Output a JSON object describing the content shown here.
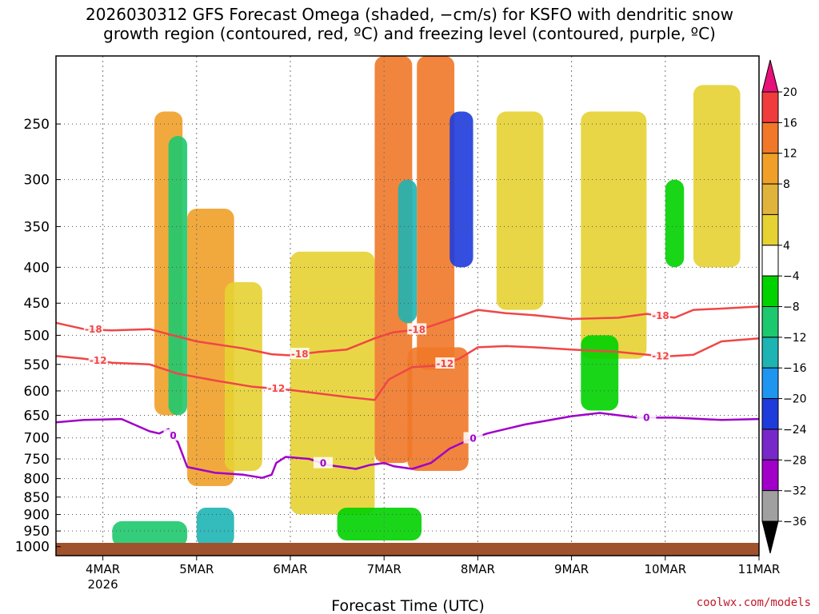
{
  "chart_data": {
    "type": "heatmap",
    "title": "2026030312 GFS Forecast Omega (shaded, −cm/s) for KSFO with dendritic snow\ngrowth region (contoured, red, ºC) and freezing level (contoured, purple, ºC)",
    "xlabel": "Forecast Time (UTC)",
    "ylabel": "",
    "x_ticks": [
      {
        "day": 4.0,
        "label": "4MAR",
        "sub": "2026"
      },
      {
        "day": 5.0,
        "label": "5MAR",
        "sub": ""
      },
      {
        "day": 6.0,
        "label": "6MAR",
        "sub": ""
      },
      {
        "day": 7.0,
        "label": "7MAR",
        "sub": ""
      },
      {
        "day": 8.0,
        "label": "8MAR",
        "sub": ""
      },
      {
        "day": 9.0,
        "label": "9MAR",
        "sub": ""
      },
      {
        "day": 10.0,
        "label": "10MAR",
        "sub": ""
      },
      {
        "day": 11.0,
        "label": "11MAR",
        "sub": ""
      }
    ],
    "xlim": [
      3.5,
      11.0
    ],
    "ylim": [
      1030,
      200
    ],
    "y_ticks": [
      250,
      300,
      350,
      400,
      450,
      500,
      550,
      600,
      650,
      700,
      750,
      800,
      850,
      900,
      950,
      1000
    ],
    "colorbar": {
      "labels": [
        "20",
        "16",
        "12",
        "8",
        "4",
        "−4",
        "−8",
        "−12",
        "−16",
        "−20",
        "−24",
        "−28",
        "−32",
        "−36"
      ],
      "colors": [
        "#e8107a",
        "#f03c3c",
        "#f07828",
        "#f0a028",
        "#e0b43c",
        "#e6d232",
        "#ffffff",
        "#00d200",
        "#1ec86e",
        "#1eb4b4",
        "#1e96f0",
        "#1e3cdc",
        "#7828c8",
        "#a000c8",
        "#a0a0a0",
        "#000000"
      ]
    },
    "series": [
      {
        "name": "-18C",
        "label": "-18",
        "color": "#f04646",
        "points": [
          [
            3.5,
            480
          ],
          [
            3.8,
            490
          ],
          [
            4.1,
            492
          ],
          [
            4.5,
            490
          ],
          [
            4.7,
            498
          ],
          [
            5.0,
            510
          ],
          [
            5.5,
            522
          ],
          [
            5.8,
            532
          ],
          [
            6.0,
            534
          ],
          [
            6.3,
            528
          ],
          [
            6.6,
            524
          ],
          [
            6.9,
            505
          ],
          [
            7.1,
            495
          ],
          [
            7.4,
            490
          ],
          [
            7.7,
            475
          ],
          [
            8.0,
            460
          ],
          [
            8.3,
            465
          ],
          [
            8.6,
            468
          ],
          [
            9.0,
            474
          ],
          [
            9.5,
            472
          ],
          [
            9.8,
            466
          ],
          [
            10.1,
            472
          ],
          [
            10.3,
            460
          ],
          [
            10.6,
            458
          ],
          [
            11.0,
            455
          ]
        ],
        "label_days": [
          3.9,
          6.1,
          7.35,
          9.95
        ]
      },
      {
        "name": "-12C",
        "label": "-12",
        "color": "#f04646",
        "points": [
          [
            3.5,
            535
          ],
          [
            3.8,
            540
          ],
          [
            4.1,
            547
          ],
          [
            4.5,
            550
          ],
          [
            4.8,
            567
          ],
          [
            5.2,
            580
          ],
          [
            5.6,
            592
          ],
          [
            6.0,
            598
          ],
          [
            6.3,
            605
          ],
          [
            6.6,
            612
          ],
          [
            6.9,
            618
          ],
          [
            7.05,
            578
          ],
          [
            7.3,
            555
          ],
          [
            7.6,
            552
          ],
          [
            7.8,
            540
          ],
          [
            8.0,
            520
          ],
          [
            8.3,
            518
          ],
          [
            8.6,
            520
          ],
          [
            9.0,
            524
          ],
          [
            9.5,
            528
          ],
          [
            10.0,
            536
          ],
          [
            10.3,
            533
          ],
          [
            10.6,
            510
          ],
          [
            11.0,
            505
          ]
        ],
        "label_days": [
          3.95,
          5.85,
          7.65,
          9.95
        ]
      },
      {
        "name": "0C",
        "label": "0",
        "color": "#a000c8",
        "points": [
          [
            3.5,
            665
          ],
          [
            3.8,
            660
          ],
          [
            4.2,
            658
          ],
          [
            4.5,
            685
          ],
          [
            4.6,
            690
          ],
          [
            4.7,
            680
          ],
          [
            4.8,
            710
          ],
          [
            4.9,
            770
          ],
          [
            5.2,
            785
          ],
          [
            5.5,
            790
          ],
          [
            5.7,
            798
          ],
          [
            5.8,
            790
          ],
          [
            5.85,
            760
          ],
          [
            5.95,
            745
          ],
          [
            6.2,
            750
          ],
          [
            6.4,
            765
          ],
          [
            6.7,
            775
          ],
          [
            6.85,
            765
          ],
          [
            7.0,
            760
          ],
          [
            7.1,
            768
          ],
          [
            7.3,
            775
          ],
          [
            7.5,
            760
          ],
          [
            7.7,
            725
          ],
          [
            7.9,
            705
          ],
          [
            8.1,
            690
          ],
          [
            8.5,
            670
          ],
          [
            9.0,
            652
          ],
          [
            9.3,
            645
          ],
          [
            9.7,
            655
          ],
          [
            10.1,
            655
          ],
          [
            10.6,
            660
          ],
          [
            11.0,
            658
          ]
        ],
        "label_days": [
          4.75,
          6.35,
          7.95,
          9.8
        ]
      }
    ],
    "shading_patches": [
      {
        "t0": 4.55,
        "t1": 4.85,
        "p0": 240,
        "p1": 650,
        "value": 8
      },
      {
        "t0": 4.9,
        "t1": 5.4,
        "p0": 330,
        "p1": 820,
        "value": 10
      },
      {
        "t0": 5.3,
        "t1": 5.7,
        "p0": 420,
        "p1": 780,
        "value": 7
      },
      {
        "t0": 6.0,
        "t1": 6.9,
        "p0": 380,
        "p1": 900,
        "value": 6
      },
      {
        "t0": 6.9,
        "t1": 7.3,
        "p0": 200,
        "p1": 760,
        "value": 12
      },
      {
        "t0": 7.35,
        "t1": 7.75,
        "p0": 200,
        "p1": 560,
        "value": 13
      },
      {
        "t0": 7.25,
        "t1": 7.9,
        "p0": 520,
        "p1": 780,
        "value": 12
      },
      {
        "t0": 8.2,
        "t1": 8.7,
        "p0": 240,
        "p1": 460,
        "value": 5
      },
      {
        "t0": 9.1,
        "t1": 9.8,
        "p0": 240,
        "p1": 540,
        "value": 6
      },
      {
        "t0": 10.3,
        "t1": 10.8,
        "p0": 220,
        "p1": 400,
        "value": 5
      },
      {
        "t0": 7.7,
        "t1": 7.95,
        "p0": 240,
        "p1": 400,
        "value": -22
      },
      {
        "t0": 7.15,
        "t1": 7.35,
        "p0": 300,
        "p1": 480,
        "value": -15
      },
      {
        "t0": 4.7,
        "t1": 4.9,
        "p0": 260,
        "p1": 650,
        "value": -10
      },
      {
        "t0": 4.1,
        "t1": 4.9,
        "p0": 920,
        "p1": 1000,
        "value": -8
      },
      {
        "t0": 5.0,
        "t1": 5.4,
        "p0": 880,
        "p1": 1000,
        "value": -12
      },
      {
        "t0": 6.5,
        "t1": 7.4,
        "p0": 880,
        "p1": 980,
        "value": -6
      },
      {
        "t0": 9.1,
        "t1": 9.5,
        "p0": 500,
        "p1": 640,
        "value": -6
      },
      {
        "t0": 10.0,
        "t1": 10.2,
        "p0": 300,
        "p1": 400,
        "value": -5
      }
    ]
  },
  "footer": "coolwx.com/models"
}
